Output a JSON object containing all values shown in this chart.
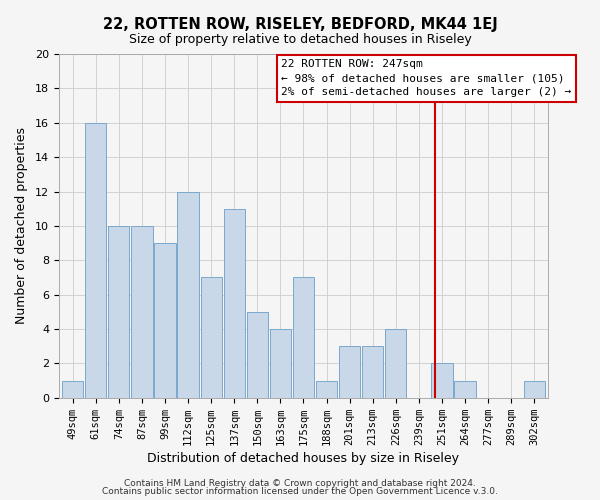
{
  "title": "22, ROTTEN ROW, RISELEY, BEDFORD, MK44 1EJ",
  "subtitle": "Size of property relative to detached houses in Riseley",
  "xlabel": "Distribution of detached houses by size in Riseley",
  "ylabel": "Number of detached properties",
  "bin_labels": [
    "49sqm",
    "61sqm",
    "74sqm",
    "87sqm",
    "99sqm",
    "112sqm",
    "125sqm",
    "137sqm",
    "150sqm",
    "163sqm",
    "175sqm",
    "188sqm",
    "201sqm",
    "213sqm",
    "226sqm",
    "239sqm",
    "251sqm",
    "264sqm",
    "277sqm",
    "289sqm",
    "302sqm"
  ],
  "bar_heights": [
    1,
    16,
    10,
    10,
    9,
    12,
    7,
    11,
    5,
    4,
    7,
    1,
    3,
    3,
    4,
    0,
    2,
    1,
    0,
    0,
    1
  ],
  "bar_color": "#c8d8e8",
  "bar_edge_color": "#7aa8cc",
  "vline_x": 15.7,
  "vline_color": "#cc0000",
  "annotation_title": "22 ROTTEN ROW: 247sqm",
  "annotation_line1": "← 98% of detached houses are smaller (105)",
  "annotation_line2": "2% of semi-detached houses are larger (2) →",
  "annotation_box_color": "#ffffff",
  "annotation_box_edge": "#cc0000",
  "ylim": [
    0,
    20
  ],
  "yticks": [
    0,
    2,
    4,
    6,
    8,
    10,
    12,
    14,
    16,
    18,
    20
  ],
  "footer1": "Contains HM Land Registry data © Crown copyright and database right 2024.",
  "footer2": "Contains public sector information licensed under the Open Government Licence v.3.0.",
  "grid_color": "#cccccc",
  "background_color": "#f5f5f5"
}
